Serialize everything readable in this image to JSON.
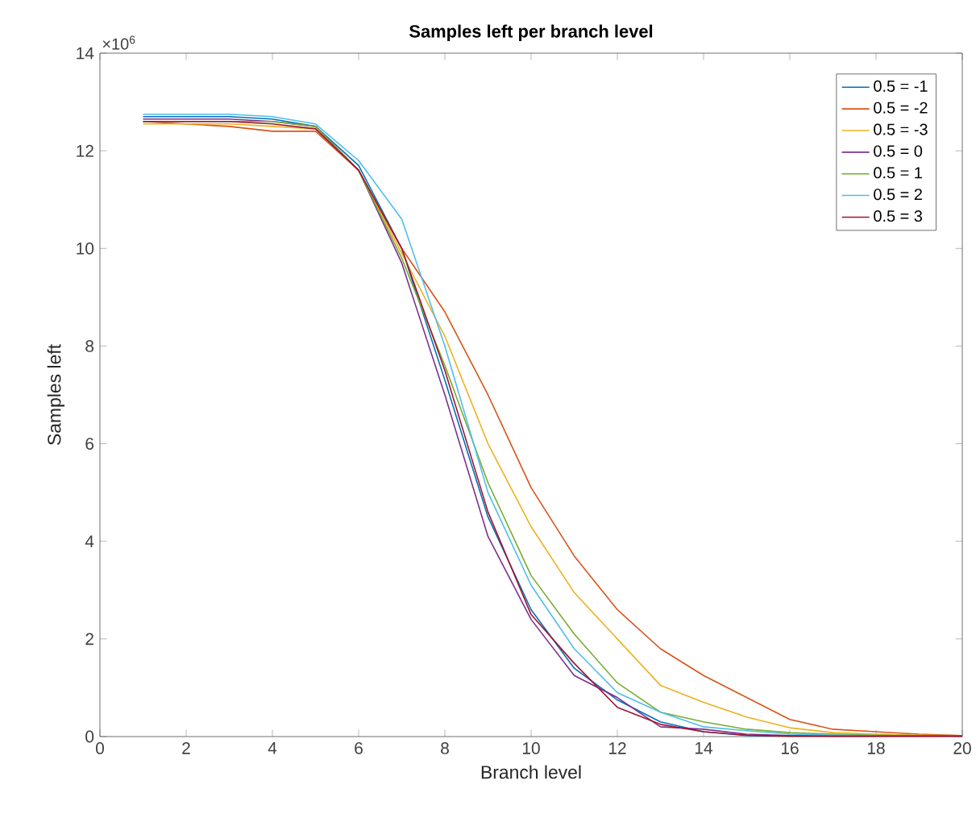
{
  "chart_data": {
    "type": "line",
    "title": "Samples left per branch level",
    "xlabel": "Branch level",
    "ylabel": "Samples left",
    "annotations": [
      "×10$^{6}$"
    ],
    "x": [
      1,
      2,
      3,
      4,
      5,
      6,
      7,
      8,
      9,
      10,
      11,
      12,
      13,
      14,
      15,
      16,
      17,
      18,
      19,
      20
    ],
    "xlim": [
      0,
      20
    ],
    "xticks": [
      0,
      2,
      4,
      6,
      8,
      10,
      12,
      14,
      16,
      18,
      20
    ],
    "ylim": [
      0,
      14
    ],
    "yticks": [
      0,
      2,
      4,
      6,
      8,
      10,
      12,
      14
    ],
    "legend": "top right",
    "series": [
      {
        "name": "0.5 = -1",
        "color": "#0072bd",
        "values": [
          12.7,
          12.7,
          12.7,
          12.65,
          12.5,
          11.7,
          10.0,
          7.3,
          4.5,
          2.6,
          1.4,
          0.75,
          0.3,
          0.1,
          0.02,
          0.01,
          0.01,
          0.01,
          null,
          null
        ]
      },
      {
        "name": "0.5 = -2",
        "color": "#d95319",
        "values": [
          12.6,
          12.55,
          12.5,
          12.4,
          12.4,
          11.6,
          10.0,
          8.7,
          7.0,
          5.1,
          3.7,
          2.6,
          1.8,
          1.25,
          0.8,
          0.35,
          0.15,
          0.1,
          0.05,
          0.02
        ]
      },
      {
        "name": "0.5 = -3",
        "color": "#edb120",
        "values": [
          12.55,
          12.55,
          12.55,
          12.5,
          12.45,
          11.6,
          9.9,
          8.2,
          6.0,
          4.3,
          2.95,
          2.0,
          1.05,
          0.7,
          0.4,
          0.18,
          0.08,
          0.05,
          0.03,
          0.02
        ]
      },
      {
        "name": "0.5 = 0",
        "color": "#7e2f8e",
        "values": [
          12.65,
          12.65,
          12.65,
          12.6,
          12.5,
          11.6,
          9.7,
          7.0,
          4.1,
          2.4,
          1.25,
          0.8,
          0.2,
          0.15,
          0.05,
          0.02,
          0.01,
          0.01,
          0.01,
          0.01
        ]
      },
      {
        "name": "0.5 = 1",
        "color": "#77ac30",
        "values": [
          12.6,
          12.6,
          12.6,
          12.6,
          12.5,
          11.6,
          9.8,
          7.6,
          5.2,
          3.3,
          2.1,
          1.1,
          0.5,
          0.3,
          0.15,
          0.08,
          0.05,
          0.03,
          0.02,
          0.01
        ]
      },
      {
        "name": "0.5 = 2",
        "color": "#4dbeee",
        "values": [
          12.75,
          12.75,
          12.75,
          12.7,
          12.55,
          11.8,
          10.6,
          8.0,
          5.0,
          3.1,
          1.8,
          0.9,
          0.5,
          0.2,
          0.12,
          0.05,
          0.03,
          0.02,
          null,
          null
        ]
      },
      {
        "name": "0.5 = 3",
        "color": "#a2142f",
        "values": [
          12.6,
          12.6,
          12.6,
          12.55,
          12.45,
          11.6,
          10.0,
          7.5,
          4.6,
          2.5,
          1.5,
          0.6,
          0.25,
          0.1,
          0.03,
          0.01,
          0.01,
          0.01,
          0.01,
          0.01
        ]
      }
    ]
  }
}
